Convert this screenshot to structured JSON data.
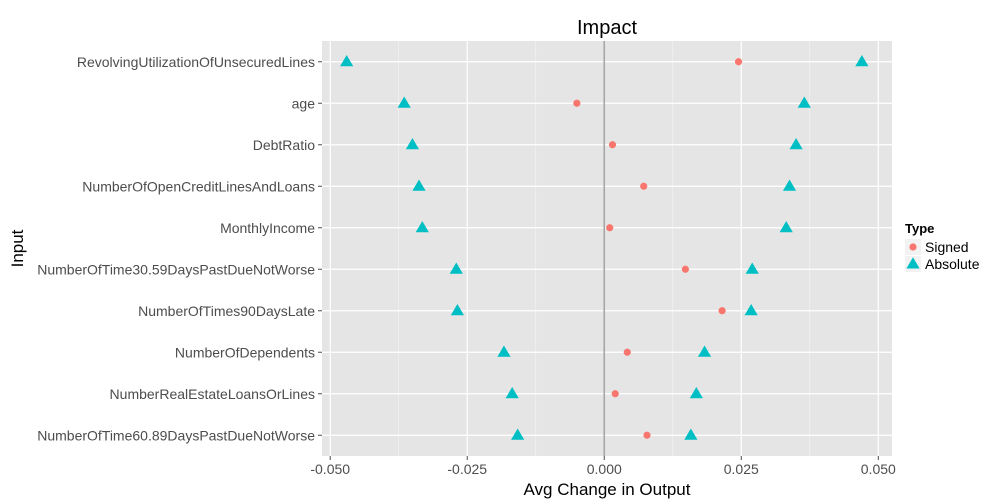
{
  "chart_data": {
    "type": "scatter",
    "title": "Impact",
    "xlabel": "Avg Change in Output",
    "ylabel": "Input",
    "xlim": [
      -0.0515,
      0.0525
    ],
    "x_ticks": [
      -0.05,
      -0.025,
      0.0,
      0.025,
      0.05
    ],
    "x_tick_labels": [
      "-0.050",
      "-0.025",
      "0.000",
      "0.025",
      "0.050"
    ],
    "reference_line_x": 0,
    "categories": [
      "RevolvingUtilizationOfUnsecuredLines",
      "age",
      "DebtRatio",
      "NumberOfOpenCreditLinesAndLoans",
      "MonthlyIncome",
      "NumberOfTime30.59DaysPastDueNotWorse",
      "NumberOfTimes90DaysLate",
      "NumberOfDependents",
      "NumberRealEstateLoansOrLines",
      "NumberOfTime60.89DaysPastDueNotWorse"
    ],
    "series": [
      {
        "name": "Signed",
        "shape": "circle",
        "color": "#F8766D",
        "values": [
          0.0245,
          -0.005,
          0.0015,
          0.0072,
          0.001,
          0.0148,
          0.0215,
          0.0042,
          0.002,
          0.0078
        ]
      },
      {
        "name": "Absolute",
        "shape": "triangle",
        "color": "#00BFC4",
        "values": [
          0.047,
          0.0365,
          0.035,
          0.0338,
          0.0332,
          0.027,
          0.0268,
          0.0183,
          0.0168,
          0.0158
        ],
        "mirror": true
      }
    ],
    "legend": {
      "title": "Type",
      "position": "right"
    },
    "grid": true,
    "panel_background": "#E5E5E5",
    "grid_color": "#FFFFFF"
  }
}
